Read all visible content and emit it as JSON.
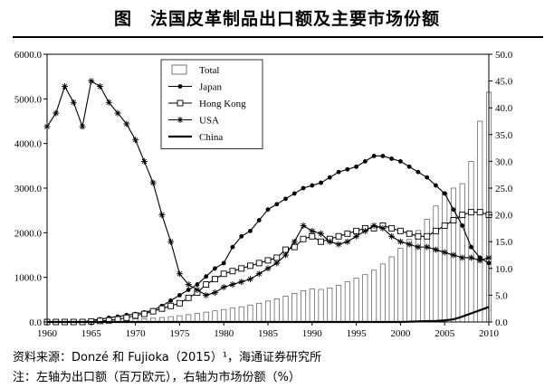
{
  "title": "图　法国皮革制品出口额及主要市场份额",
  "source": "资料来源：Donzé 和 Fujioka（2015）¹，海通证券研究所",
  "footnote": "注：左轴为出口额（百万欧元），右轴为市场份额（%）",
  "chart_data": {
    "type": "bar+line",
    "x_ticks": [
      1960,
      1965,
      1970,
      1975,
      1980,
      1985,
      1990,
      1995,
      2000,
      2005,
      2010
    ],
    "y_left": {
      "lim": [
        0,
        6000
      ],
      "ticks": [
        0,
        1000,
        2000,
        3000,
        4000,
        5000,
        6000
      ],
      "tick_labels": [
        "0.0",
        "1000.0",
        "2000.0",
        "3000.0",
        "4000.0",
        "5000.0",
        "6000.0"
      ]
    },
    "y_right": {
      "lim": [
        0,
        50
      ],
      "ticks": [
        0,
        5,
        10,
        15,
        20,
        25,
        30,
        35,
        40,
        45,
        50
      ],
      "tick_labels": [
        "0.0",
        "5.0",
        "10.0",
        "15.0",
        "20.0",
        "25.0",
        "30.0",
        "35.0",
        "40.0",
        "45.0",
        "50.0"
      ]
    },
    "legend_position": "top-left",
    "years": [
      1960,
      1961,
      1962,
      1963,
      1964,
      1965,
      1966,
      1967,
      1968,
      1969,
      1970,
      1971,
      1972,
      1973,
      1974,
      1975,
      1976,
      1977,
      1978,
      1979,
      1980,
      1981,
      1982,
      1983,
      1984,
      1985,
      1986,
      1987,
      1988,
      1989,
      1990,
      1991,
      1992,
      1993,
      1994,
      1995,
      1996,
      1997,
      1998,
      1999,
      2000,
      2001,
      2002,
      2003,
      2004,
      2005,
      2006,
      2007,
      2008,
      2009,
      2010
    ],
    "series": [
      {
        "name": "Total",
        "kind": "bar",
        "axis": "left",
        "values": [
          20,
          25,
          30,
          35,
          40,
          45,
          50,
          55,
          60,
          65,
          70,
          75,
          85,
          100,
          120,
          140,
          165,
          190,
          220,
          250,
          280,
          310,
          340,
          380,
          420,
          470,
          520,
          580,
          640,
          700,
          740,
          730,
          760,
          820,
          900,
          980,
          1060,
          1160,
          1300,
          1460,
          1650,
          1850,
          2050,
          2300,
          2600,
          2900,
          3000,
          3100,
          3600,
          4500,
          5150
        ]
      },
      {
        "name": "Japan",
        "kind": "line",
        "marker": "dot",
        "axis": "right",
        "values": [
          0,
          0,
          0,
          0,
          0,
          0.3,
          0.5,
          0.8,
          1,
          1.3,
          1.5,
          1.8,
          2.2,
          3,
          4,
          5,
          6,
          7,
          8.5,
          10,
          11,
          14,
          16,
          17,
          19,
          21,
          22,
          23,
          24,
          25,
          25.5,
          26,
          27,
          28,
          28.5,
          29,
          30,
          31,
          31,
          30.5,
          30,
          29,
          28,
          27,
          25.5,
          24,
          21,
          18,
          14,
          12,
          11
        ]
      },
      {
        "name": "Hong Kong",
        "kind": "line",
        "marker": "square",
        "axis": "right",
        "values": [
          0,
          0,
          0,
          0,
          0,
          0.1,
          0.2,
          0.3,
          0.5,
          0.8,
          1.2,
          1.5,
          2,
          2.5,
          3,
          3.5,
          4.5,
          5.5,
          7,
          8,
          9,
          9.5,
          10,
          10.5,
          11,
          11.5,
          12,
          13.5,
          14,
          15.5,
          16,
          15,
          15.5,
          16,
          16.5,
          17,
          17.5,
          17.5,
          18,
          17.5,
          17,
          16.5,
          16,
          16,
          17,
          18,
          19,
          20,
          20.5,
          20.5,
          20
        ]
      },
      {
        "name": "USA",
        "kind": "line",
        "marker": "star",
        "axis": "right",
        "values": [
          36.5,
          39,
          44,
          41,
          36.5,
          45,
          44,
          41,
          39,
          37,
          34,
          30,
          26,
          20,
          15,
          9,
          7,
          6,
          5,
          5.5,
          6.5,
          7,
          7.5,
          8,
          9,
          10,
          11,
          12.5,
          15,
          18,
          17,
          16.5,
          15,
          14.5,
          15,
          16,
          17,
          18,
          17.5,
          16,
          15,
          14.5,
          14,
          14,
          13.5,
          13,
          12.5,
          12,
          12,
          11.5,
          12
        ]
      },
      {
        "name": "China",
        "kind": "line",
        "marker": "none",
        "axis": "right",
        "values": [
          0,
          0,
          0,
          0,
          0,
          0,
          0,
          0,
          0,
          0,
          0,
          0,
          0,
          0,
          0,
          0,
          0,
          0,
          0,
          0,
          0,
          0,
          0,
          0,
          0,
          0,
          0,
          0,
          0,
          0,
          0,
          0,
          0,
          0,
          0,
          0,
          0,
          0,
          0,
          0,
          0,
          0.05,
          0.1,
          0.15,
          0.2,
          0.3,
          0.5,
          1,
          1.6,
          2.2,
          2.8
        ]
      }
    ]
  }
}
